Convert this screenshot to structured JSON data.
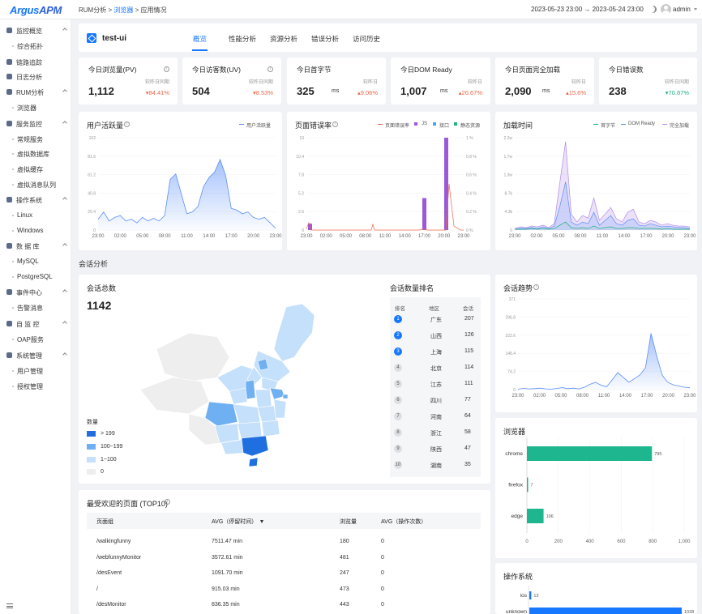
{
  "topbar": {
    "logo_a": "Argus",
    "logo_b": "APM",
    "crumb1": "RUM分析",
    "crumb_sep1": ">",
    "crumb2": "浏览器",
    "crumb_sep2": ">",
    "crumb3": "应用情况",
    "date_range": "2023-05-23 23:00 → 2023-05-24 23:00",
    "user": "admin"
  },
  "sidebar": {
    "groups": [
      {
        "label": "监控概览",
        "items": [
          "综合拓扑"
        ]
      },
      {
        "label": "链路追踪",
        "items": []
      },
      {
        "label": "日志分析",
        "items": []
      },
      {
        "label": "RUM分析",
        "items": [
          "浏览器"
        ]
      },
      {
        "label": "服务监控",
        "items": [
          "常规服务",
          "虚拟数据库",
          "虚拟缓存",
          "虚拟消息队列"
        ]
      },
      {
        "label": "操作系统",
        "items": [
          "Linux",
          "Windows"
        ]
      },
      {
        "label": "数 据 库",
        "items": [
          "MySQL",
          "PostgreSQL"
        ]
      },
      {
        "label": "事件中心",
        "items": [
          "告警消息"
        ]
      },
      {
        "label": "自 监 控",
        "items": [
          "OAP服务"
        ]
      },
      {
        "label": "系统管理",
        "items": [
          "用户管理",
          "授权管理"
        ]
      }
    ]
  },
  "app": {
    "name": "test-ui",
    "tabs": [
      "概览",
      "性能分析",
      "资源分析",
      "错误分析",
      "访问历史"
    ]
  },
  "stats": [
    {
      "title": "今日浏览量(PV)",
      "cmp": "较昨日同期",
      "value": "1,112",
      "unit": "",
      "pct": "▾84.41%",
      "trend": "down"
    },
    {
      "title": "今日访客数(UV)",
      "cmp": "较昨日同期",
      "value": "504",
      "unit": "",
      "pct": "▾8.53%",
      "trend": "down"
    },
    {
      "title": "今日首字节",
      "cmp": "较昨日",
      "value": "325",
      "unit": "ms",
      "pct": "▴9.06%",
      "trend": "up-bad"
    },
    {
      "title": "今日DOM Ready",
      "cmp": "较昨日",
      "value": "1,007",
      "unit": "ms",
      "pct": "▴26.67%",
      "trend": "up-bad"
    },
    {
      "title": "今日页面完全加载",
      "cmp": "较昨日",
      "value": "2,090",
      "unit": "ms",
      "pct": "▴15.6%",
      "trend": "up-bad"
    },
    {
      "title": "今日错误数",
      "cmp": "较昨日同期",
      "value": "238",
      "unit": "",
      "pct": "▾70.87%",
      "trend": "down-good"
    }
  ],
  "chart_data": [
    {
      "type": "area",
      "title": "用户活跃量",
      "series": [
        {
          "name": "用户活跃量",
          "values": [
            12,
            20,
            10,
            14,
            16,
            10,
            12,
            8,
            14,
            10,
            13,
            10,
            16,
            56,
            62,
            40,
            18,
            20,
            26,
            48,
            58,
            64,
            78,
            60,
            24,
            22,
            18,
            20,
            14,
            12,
            14,
            8,
            2
          ]
        }
      ],
      "x_ticks": [
        "23:00",
        "02:00",
        "05:00",
        "08:00",
        "11:00",
        "14:00",
        "17:00",
        "20:00",
        "23:00"
      ],
      "y_ticks": [
        "102",
        "81.6",
        "61.2",
        "40.8",
        "20.4",
        "0"
      ],
      "ylim": [
        0,
        102
      ]
    },
    {
      "type": "bar",
      "title": "页面错误率",
      "series": [
        {
          "name": "页面错误率",
          "color": "#e8684a"
        },
        {
          "name": "JS",
          "color": "#9b59d9"
        },
        {
          "name": "接口",
          "color": "#3ba7ff"
        },
        {
          "name": "静态资源",
          "color": "#1eb47f"
        }
      ],
      "x_ticks": [
        "23:00",
        "02:00",
        "05:00",
        "08:00",
        "11:00",
        "14:00",
        "17:00",
        "20:00",
        "23:00"
      ],
      "y_ticks_left": [
        "13",
        "10.4",
        "7.8",
        "5.2",
        "2.6",
        "0"
      ],
      "y_ticks_right": [
        "1 %",
        "0.8 %",
        "0.6 %",
        "0.4 %",
        "0.2 %",
        "0 %"
      ]
    },
    {
      "type": "line",
      "title": "加载时间",
      "series": [
        {
          "name": "首字节",
          "color": "#1eb47f"
        },
        {
          "name": "DOM Ready",
          "color": "#5b8ff9"
        },
        {
          "name": "完全加载",
          "color": "#b18be6"
        }
      ],
      "x_ticks": [
        "23:00",
        "02:00",
        "05:00",
        "08:00",
        "11:00",
        "14:00",
        "17:00",
        "20:00",
        "23:00"
      ],
      "y_ticks": [
        "2.2w",
        "1.7w",
        "1.3w",
        "8.7k",
        "4.3k",
        "0"
      ]
    },
    {
      "type": "area",
      "title": "会话趋势",
      "series": [
        {
          "name": "会话趋势",
          "values": [
            2,
            5,
            3,
            4,
            6,
            3,
            2,
            5,
            8,
            4,
            6,
            3,
            10,
            22,
            30,
            18,
            12,
            40,
            70,
            50,
            30,
            45,
            60,
            90,
            230,
            140,
            60,
            30,
            20,
            15,
            10,
            8
          ]
        }
      ],
      "x_ticks": [
        "23:00",
        "02:00",
        "05:00",
        "08:00",
        "11:00",
        "14:00",
        "17:00",
        "20:00",
        "23:00"
      ],
      "y_ticks": [
        "371",
        "296.8",
        "222.6",
        "148.4",
        "74.2",
        "0"
      ],
      "ylim": [
        0,
        371
      ]
    },
    {
      "type": "bar",
      "title": "浏览器",
      "categories": [
        "chrome",
        "firefox",
        "edge"
      ],
      "values": [
        795,
        7,
        106
      ],
      "x_ticks": [
        "0",
        "200",
        "400",
        "600",
        "800",
        "1,000"
      ],
      "xlim": [
        0,
        1000
      ]
    },
    {
      "type": "bar",
      "title": "操作系统",
      "categories": [
        "ios",
        "unknown"
      ],
      "values": [
        13,
        1028
      ]
    }
  ],
  "sessions": {
    "section": "会话分析",
    "title": "会话总数",
    "total": "1142",
    "legend_title": "数量",
    "legend": [
      "> 199",
      "100~199",
      "1~100",
      "0"
    ]
  },
  "rank": {
    "title": "会话数量排名",
    "headers": [
      "排名",
      "地区",
      "会话"
    ],
    "rows": [
      [
        "1",
        "广东",
        "207"
      ],
      [
        "2",
        "山西",
        "126"
      ],
      [
        "3",
        "上海",
        "115"
      ],
      [
        "4",
        "北京",
        "114"
      ],
      [
        "5",
        "江苏",
        "111"
      ],
      [
        "6",
        "四川",
        "77"
      ],
      [
        "7",
        "河南",
        "64"
      ],
      [
        "8",
        "浙江",
        "58"
      ],
      [
        "9",
        "陕西",
        "47"
      ],
      [
        "10",
        "湖南",
        "35"
      ]
    ]
  },
  "pages": {
    "title": "最受欢迎的页面 (TOP10)",
    "headers": [
      "页面组",
      "AVG（停留时间）",
      "浏览量",
      "AVG（操作次数）"
    ],
    "rows": [
      [
        "/walkingfunny",
        "7511.47 min",
        "180",
        "0"
      ],
      [
        "/webfunnyMonitor",
        "3572.61 min",
        "481",
        "0"
      ],
      [
        "/desEvent",
        "1091.70 min",
        "247",
        "0"
      ],
      [
        "/",
        "915.03 min",
        "473",
        "0"
      ],
      [
        "/desMonitor",
        "836.35 min",
        "443",
        "0"
      ]
    ]
  },
  "colors": {
    "primary": "#1677ff",
    "red": "#e8684a",
    "green": "#1eb47f",
    "teal": "#1eb68f",
    "map_high": "#1f6fe0",
    "map_mid": "#6fb0f2",
    "map_low": "#c5e0fa",
    "map_zero": "#eeeeee"
  }
}
